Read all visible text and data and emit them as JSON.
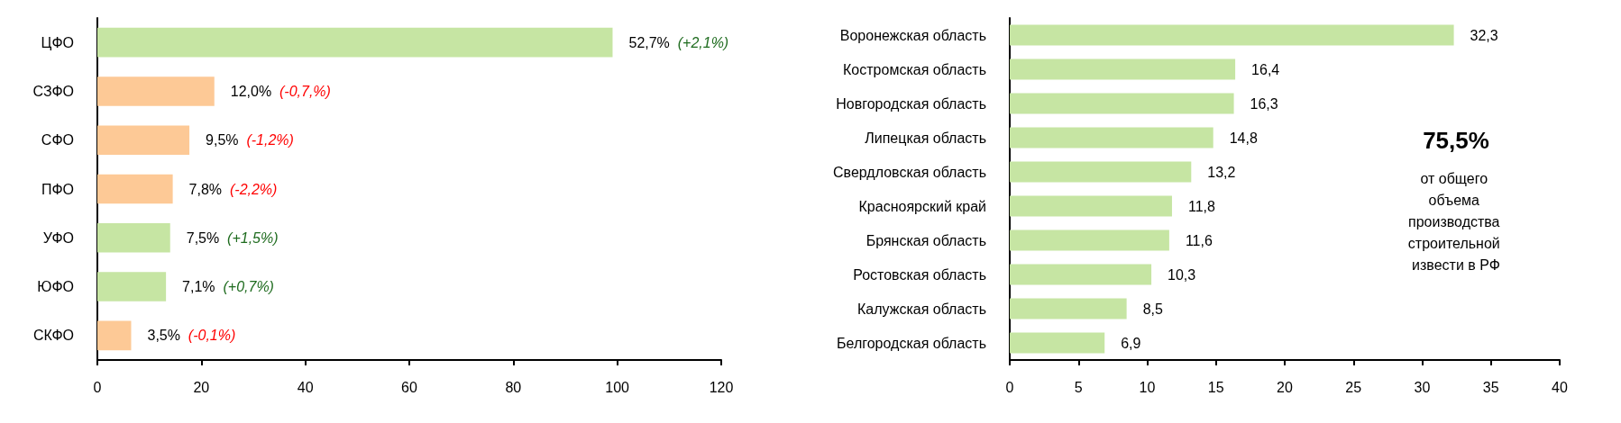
{
  "chart_data": [
    {
      "type": "bar",
      "orientation": "horizontal",
      "categories": [
        "ЦФО",
        "СЗФО",
        "СФО",
        "ПФО",
        "УФО",
        "ЮФО",
        "СКФО"
      ],
      "values": [
        99.1,
        22.5,
        17.7,
        14.5,
        14.0,
        13.2,
        6.5
      ],
      "colors": [
        "#c6e5a3",
        "#fdc996",
        "#fdc996",
        "#fdc996",
        "#c6e5a3",
        "#c6e5a3",
        "#fdc996"
      ],
      "annotations": [
        "52,7%",
        "(+2,1%)",
        "12,0%",
        "(-0,7,%)",
        "9,5%",
        "(-1,2%)",
        "7,8%",
        "(-2,2%)",
        "7,5%",
        "(+1,5%)",
        "7,1%",
        "(+0,7%)",
        "3,5%",
        "(-0,1%)"
      ],
      "xlim": [
        0,
        120
      ],
      "xticks": [
        0,
        20,
        40,
        60,
        80,
        100,
        120
      ],
      "grid": false
    },
    {
      "type": "bar",
      "orientation": "horizontal",
      "categories": [
        "Воронежская область",
        "Костромская область",
        "Новгородская область",
        "Липецкая область",
        "Свердловская область",
        "Красноярский край",
        "Брянская область",
        "Ростовская область",
        "Калужская область",
        "Белгородская область"
      ],
      "values": [
        32.3,
        16.4,
        16.3,
        14.8,
        13.2,
        11.8,
        11.6,
        10.3,
        8.5,
        6.9
      ],
      "color": "#c6e5a3",
      "value_labels": [
        "32,3",
        "16,4",
        "16,3",
        "14,8",
        "13,2",
        "11,8",
        "11,6",
        "10,3",
        "8,5",
        "6,9"
      ],
      "annotations": [
        "75,5%",
        "от общего объема производства строительной извести в РФ"
      ],
      "xlim": [
        0,
        40
      ],
      "xticks": [
        0,
        5,
        10,
        15,
        20,
        25,
        30,
        35,
        40
      ],
      "grid": false
    }
  ]
}
